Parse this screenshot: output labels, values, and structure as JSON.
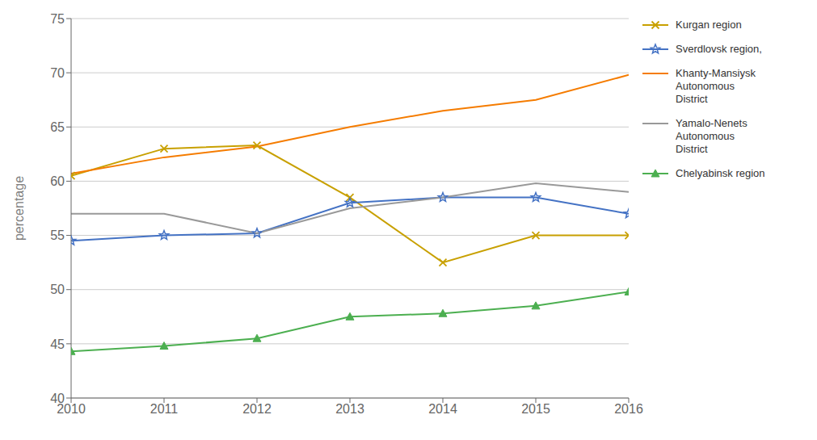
{
  "chart_data": {
    "type": "line",
    "x": [
      2010,
      2011,
      2012,
      2013,
      2014,
      2015,
      2016
    ],
    "xlim": [
      2010,
      2016
    ],
    "xticks": [
      2010,
      2011,
      2012,
      2013,
      2014,
      2015,
      2016
    ],
    "series": [
      {
        "name": "Kurgan region",
        "color": "#C8A000",
        "marker": "x",
        "values": [
          60.5,
          63.0,
          63.3,
          58.5,
          52.5,
          55.0,
          55.0
        ]
      },
      {
        "name": "Sverdlovsk region,",
        "color": "#4472C4",
        "marker": "star",
        "values": [
          54.5,
          55.0,
          55.2,
          58.0,
          58.5,
          58.5,
          57.0
        ]
      },
      {
        "name": "Khanty-Mansiysk\nAutonomous\nDistrict",
        "color": "#F57C00",
        "values": [
          60.7,
          62.2,
          63.2,
          65.0,
          66.5,
          67.5,
          69.8
        ]
      },
      {
        "name": "Yamalo-Nenets\nAutonomous\nDistrict",
        "color": "#999999",
        "values": [
          57.0,
          57.0,
          55.2,
          57.5,
          58.5,
          59.8,
          59.0
        ]
      },
      {
        "name": "Chelyabinsk region",
        "color": "#4CAF50",
        "marker": "triangle",
        "values": [
          44.3,
          44.8,
          45.5,
          47.5,
          47.8,
          48.5,
          49.8
        ]
      }
    ],
    "ylabel": "percentage",
    "ylim": [
      40,
      75
    ],
    "yticks": [
      40,
      45,
      50,
      55,
      60,
      65,
      70,
      75
    ],
    "grid": true,
    "legend": "right"
  }
}
